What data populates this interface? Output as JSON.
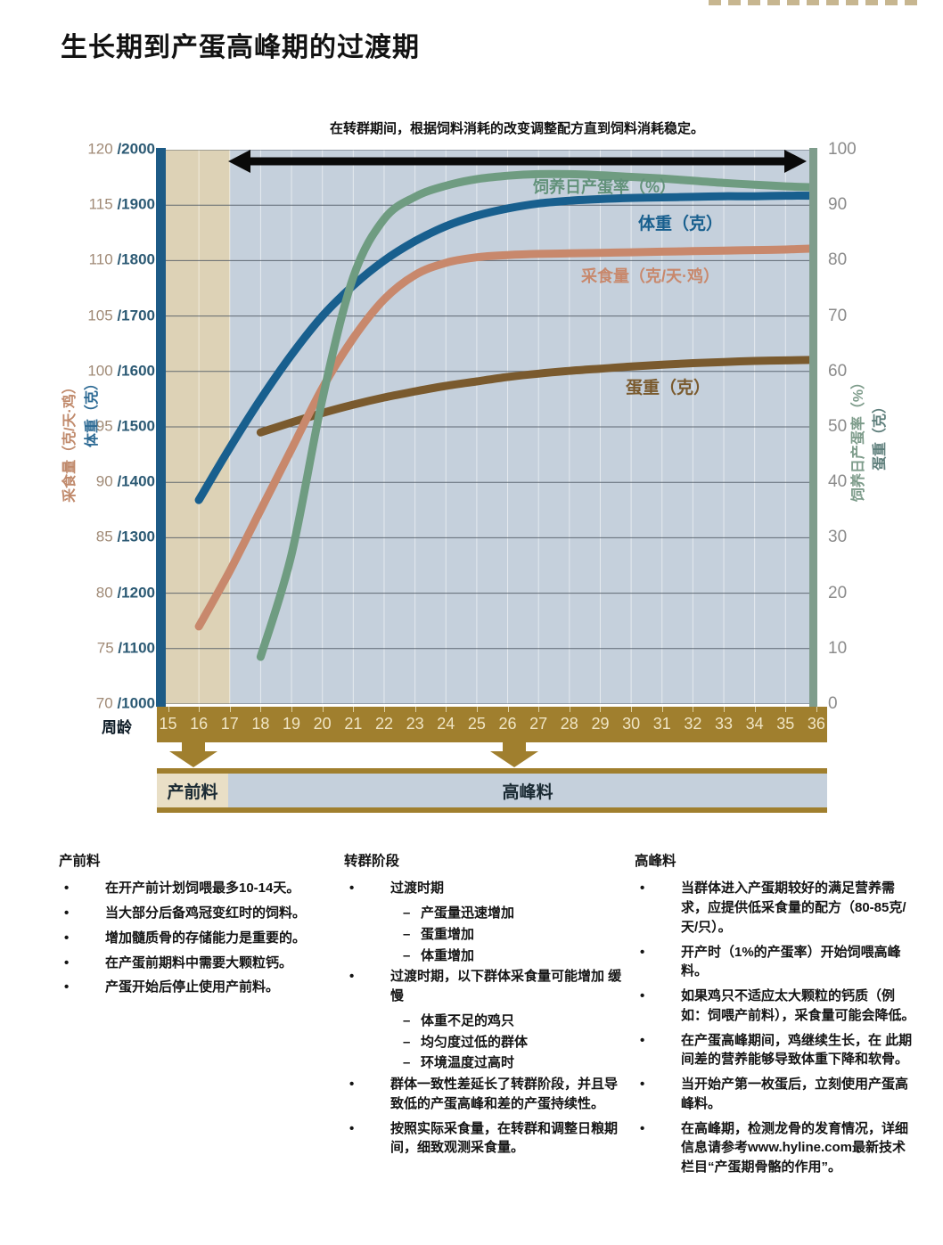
{
  "page": {
    "title": "生长期到产蛋高峰期的过渡期"
  },
  "chart": {
    "annotation": "在转群期间，根据饲料消耗的改变调整配方直到饲料消耗稳定。",
    "left_axis": {
      "title_feed": "采食量（克/天·鸡）",
      "title_weight": "体重（克）",
      "ticks": [
        {
          "feed": "120",
          "weight": "/2000"
        },
        {
          "feed": "115",
          "weight": "/1900"
        },
        {
          "feed": "110",
          "weight": "/1800"
        },
        {
          "feed": "105",
          "weight": "/1700"
        },
        {
          "feed": "100",
          "weight": "/1600"
        },
        {
          "feed": "95",
          "weight": "/1500"
        },
        {
          "feed": "90",
          "weight": "/1400"
        },
        {
          "feed": "85",
          "weight": "/1300"
        },
        {
          "feed": "80",
          "weight": "/1200"
        },
        {
          "feed": "75",
          "weight": "/1100"
        },
        {
          "feed": "70",
          "weight": "/1000"
        }
      ]
    },
    "right_axis": {
      "title_rate": "饲养日产蛋率（%）",
      "title_egg_weight": "蛋重（克）",
      "ticks": [
        "100",
        "90",
        "80",
        "70",
        "60",
        "50",
        "40",
        "30",
        "20",
        "10",
        "0"
      ]
    },
    "x_axis": {
      "label": "周龄",
      "weeks": [
        15,
        16,
        17,
        18,
        19,
        20,
        21,
        22,
        23,
        24,
        25,
        26,
        27,
        28,
        29,
        30,
        31,
        32,
        33,
        34,
        35,
        36
      ]
    },
    "series_labels": {
      "rate": "饲养日产蛋率（%）",
      "weight": "体重（克）",
      "feed": "采食量（克/天·鸡）",
      "egg": "蛋重（克）"
    },
    "feed_bar": {
      "prelay_label": "产前料",
      "peak_label": "高峰料"
    },
    "colors": {
      "rate_green": "#6f9c81",
      "weight_blue": "#185f8e",
      "feed_salmon": "#c8886c",
      "egg_brown": "#7a5a2e",
      "band_gold": "#a07f2e",
      "prelay_tan": "#ddd2b6",
      "plot_bg": "#c5d0dc",
      "left_spine": "#1d5b86",
      "right_spine": "#7f9d8c"
    }
  },
  "chart_data": {
    "type": "line",
    "title": "生长期到产蛋高峰期的过渡期",
    "xlabel": "周龄",
    "x_range": [
      15,
      36
    ],
    "left_axis_range_feed": [
      70,
      120
    ],
    "left_axis_range_weight": [
      1000,
      2000
    ],
    "right_axis_range": [
      0,
      100
    ],
    "grid": true,
    "series": [
      {
        "name": "饲养日产蛋率（%）",
        "axis": "right",
        "color": "#6f9c81",
        "x": [
          18,
          19,
          20,
          21,
          22,
          23,
          24,
          25,
          26,
          27,
          28,
          29,
          30,
          31,
          32,
          33,
          34,
          35,
          36
        ],
        "values": [
          8.5,
          27,
          55,
          77,
          87.5,
          91.5,
          93.5,
          94.7,
          95.3,
          95.6,
          95.6,
          95.4,
          95.1,
          94.8,
          94.4,
          94,
          93.7,
          93.4,
          93.2
        ]
      },
      {
        "name": "体重（克）",
        "axis": "left_weight",
        "color": "#185f8e",
        "x": [
          16,
          17,
          18,
          19,
          20,
          21,
          22,
          23,
          24,
          25,
          26,
          27,
          28,
          29,
          30,
          31,
          32,
          33,
          34,
          35,
          36
        ],
        "values": [
          1368,
          1462,
          1550,
          1630,
          1700,
          1755,
          1800,
          1835,
          1862,
          1881,
          1894,
          1903,
          1908,
          1911,
          1913,
          1914,
          1915,
          1916,
          1916,
          1917,
          1917
        ]
      },
      {
        "name": "采食量（克/天·鸡）",
        "axis": "left_feed",
        "color": "#c8886c",
        "x": [
          16,
          17,
          18,
          19,
          20,
          21,
          22,
          23,
          24,
          25,
          26,
          27,
          28,
          29,
          30,
          31,
          32,
          33,
          34,
          35,
          36
        ],
        "values": [
          77,
          82,
          87.5,
          93,
          98.5,
          103,
          106.5,
          108.7,
          109.8,
          110.3,
          110.5,
          110.6,
          110.65,
          110.7,
          110.75,
          110.8,
          110.85,
          110.9,
          110.95,
          111,
          111.1
        ]
      },
      {
        "name": "蛋重（克）",
        "axis": "right",
        "color": "#7a5a2e",
        "x": [
          18,
          19,
          20,
          21,
          22,
          23,
          24,
          25,
          26,
          27,
          28,
          29,
          30,
          31,
          32,
          33,
          34,
          35,
          36
        ],
        "values": [
          49,
          50.8,
          52.5,
          54,
          55.3,
          56.4,
          57.4,
          58.2,
          59,
          59.6,
          60.1,
          60.5,
          60.9,
          61.2,
          61.5,
          61.7,
          61.9,
          62,
          62.1
        ]
      }
    ],
    "transition_arrow_weeks": [
      17,
      36
    ],
    "phase_arrows_at_weeks": [
      16,
      26
    ],
    "phases": [
      {
        "label": "产前料",
        "weeks": [
          15,
          17
        ]
      },
      {
        "label": "高峰料",
        "weeks": [
          17,
          36
        ]
      }
    ]
  },
  "notes": [
    {
      "heading": "产前料",
      "items": [
        {
          "text": "在开产前计划饲喂最多10-14天。"
        },
        {
          "text": "当大部分后备鸡冠变红时的饲料。"
        },
        {
          "text": "增加髓质骨的存储能力是重要的。"
        },
        {
          "text": "在产蛋前期料中需要大颗粒钙。"
        },
        {
          "text": "产蛋开始后停止使用产前料。"
        }
      ]
    },
    {
      "heading": "转群阶段",
      "items": [
        {
          "text": "过渡时期",
          "subs": [
            "产蛋量迅速增加",
            "蛋重增加",
            "体重增加"
          ]
        },
        {
          "text": "过渡时期，以下群体采食量可能增加 缓慢",
          "subs": [
            "体重不足的鸡只",
            "均匀度过低的群体",
            "环境温度过高时"
          ]
        },
        {
          "text": "群体一致性差延长了转群阶段，并且导 致低的产蛋高峰和差的产蛋持续性。"
        },
        {
          "text": "按照实际采食量，在转群和调整日粮期 间，细致观测采食量。"
        }
      ]
    },
    {
      "heading": "高峰料",
      "items": [
        {
          "text": "当群体进入产蛋期较好的满足营养需求，应提供低采食量的配方（80-85克/天/只）。"
        },
        {
          "text": "开产时（1%的产蛋率）开始饲喂高峰料。"
        },
        {
          "text": "如果鸡只不适应太大颗粒的钙质（例如：饲喂产前料），采食量可能会降低。"
        },
        {
          "text": "在产蛋高峰期间，鸡继续生长，在 此期间差的营养能够导致体重下降和软骨。"
        },
        {
          "text": "当开始产第一枚蛋后，立刻使用产蛋高峰料。"
        },
        {
          "text": "在高峰期，检测龙骨的发育情况，详细信息请参考www.hyline.com最新技术栏目“产蛋期骨骼的作用”。"
        }
      ]
    }
  ]
}
